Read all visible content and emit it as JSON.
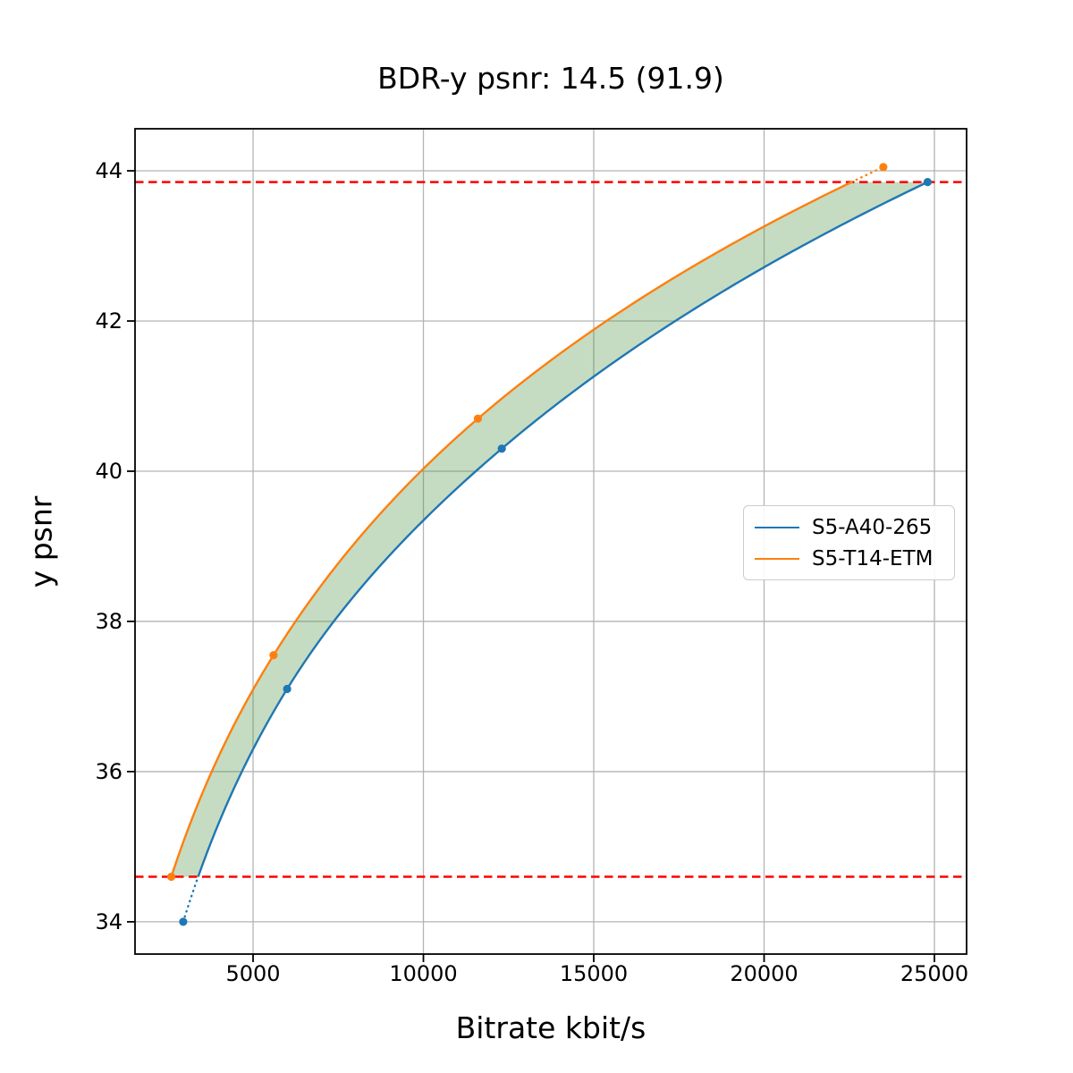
{
  "chart_data": {
    "type": "line",
    "title": "BDR-y psnr: 14.5 (91.9)",
    "xlabel": "Bitrate kbit/s",
    "ylabel": "y psnr",
    "xlim": [
      1535,
      25944
    ],
    "ylim": [
      33.57,
      44.56
    ],
    "xticks": [
      5000,
      10000,
      15000,
      20000,
      25000
    ],
    "yticks": [
      34,
      36,
      38,
      40,
      42,
      44
    ],
    "grid": true,
    "grid_color": "#b4b4b4",
    "interpolation": "pchip on psnr vs log10(bitrate); segments outside overlap range drawn dotted",
    "legend": {
      "position": "center right"
    },
    "series": [
      {
        "name": "S5-A40-265",
        "color": "#1f77b4",
        "points": [
          [
            2950,
            34.0
          ],
          [
            6000,
            37.1
          ],
          [
            12300,
            40.3
          ],
          [
            24800,
            43.85
          ]
        ]
      },
      {
        "name": "S5-T14-ETM",
        "color": "#ff7f0e",
        "points": [
          [
            2600,
            34.6
          ],
          [
            5600,
            37.55
          ],
          [
            11600,
            40.7
          ],
          [
            23500,
            44.05
          ]
        ]
      }
    ],
    "reference_lines": [
      {
        "y": 34.6,
        "color": "#ff0000",
        "style": "dashed"
      },
      {
        "y": 43.85,
        "color": "#ff0000",
        "style": "dashed"
      }
    ],
    "fill_between": {
      "between": [
        "S5-T14-ETM",
        "S5-A40-265"
      ],
      "y_range": [
        34.6,
        43.85
      ],
      "color": "#4c9141",
      "opacity": 0.32
    }
  }
}
